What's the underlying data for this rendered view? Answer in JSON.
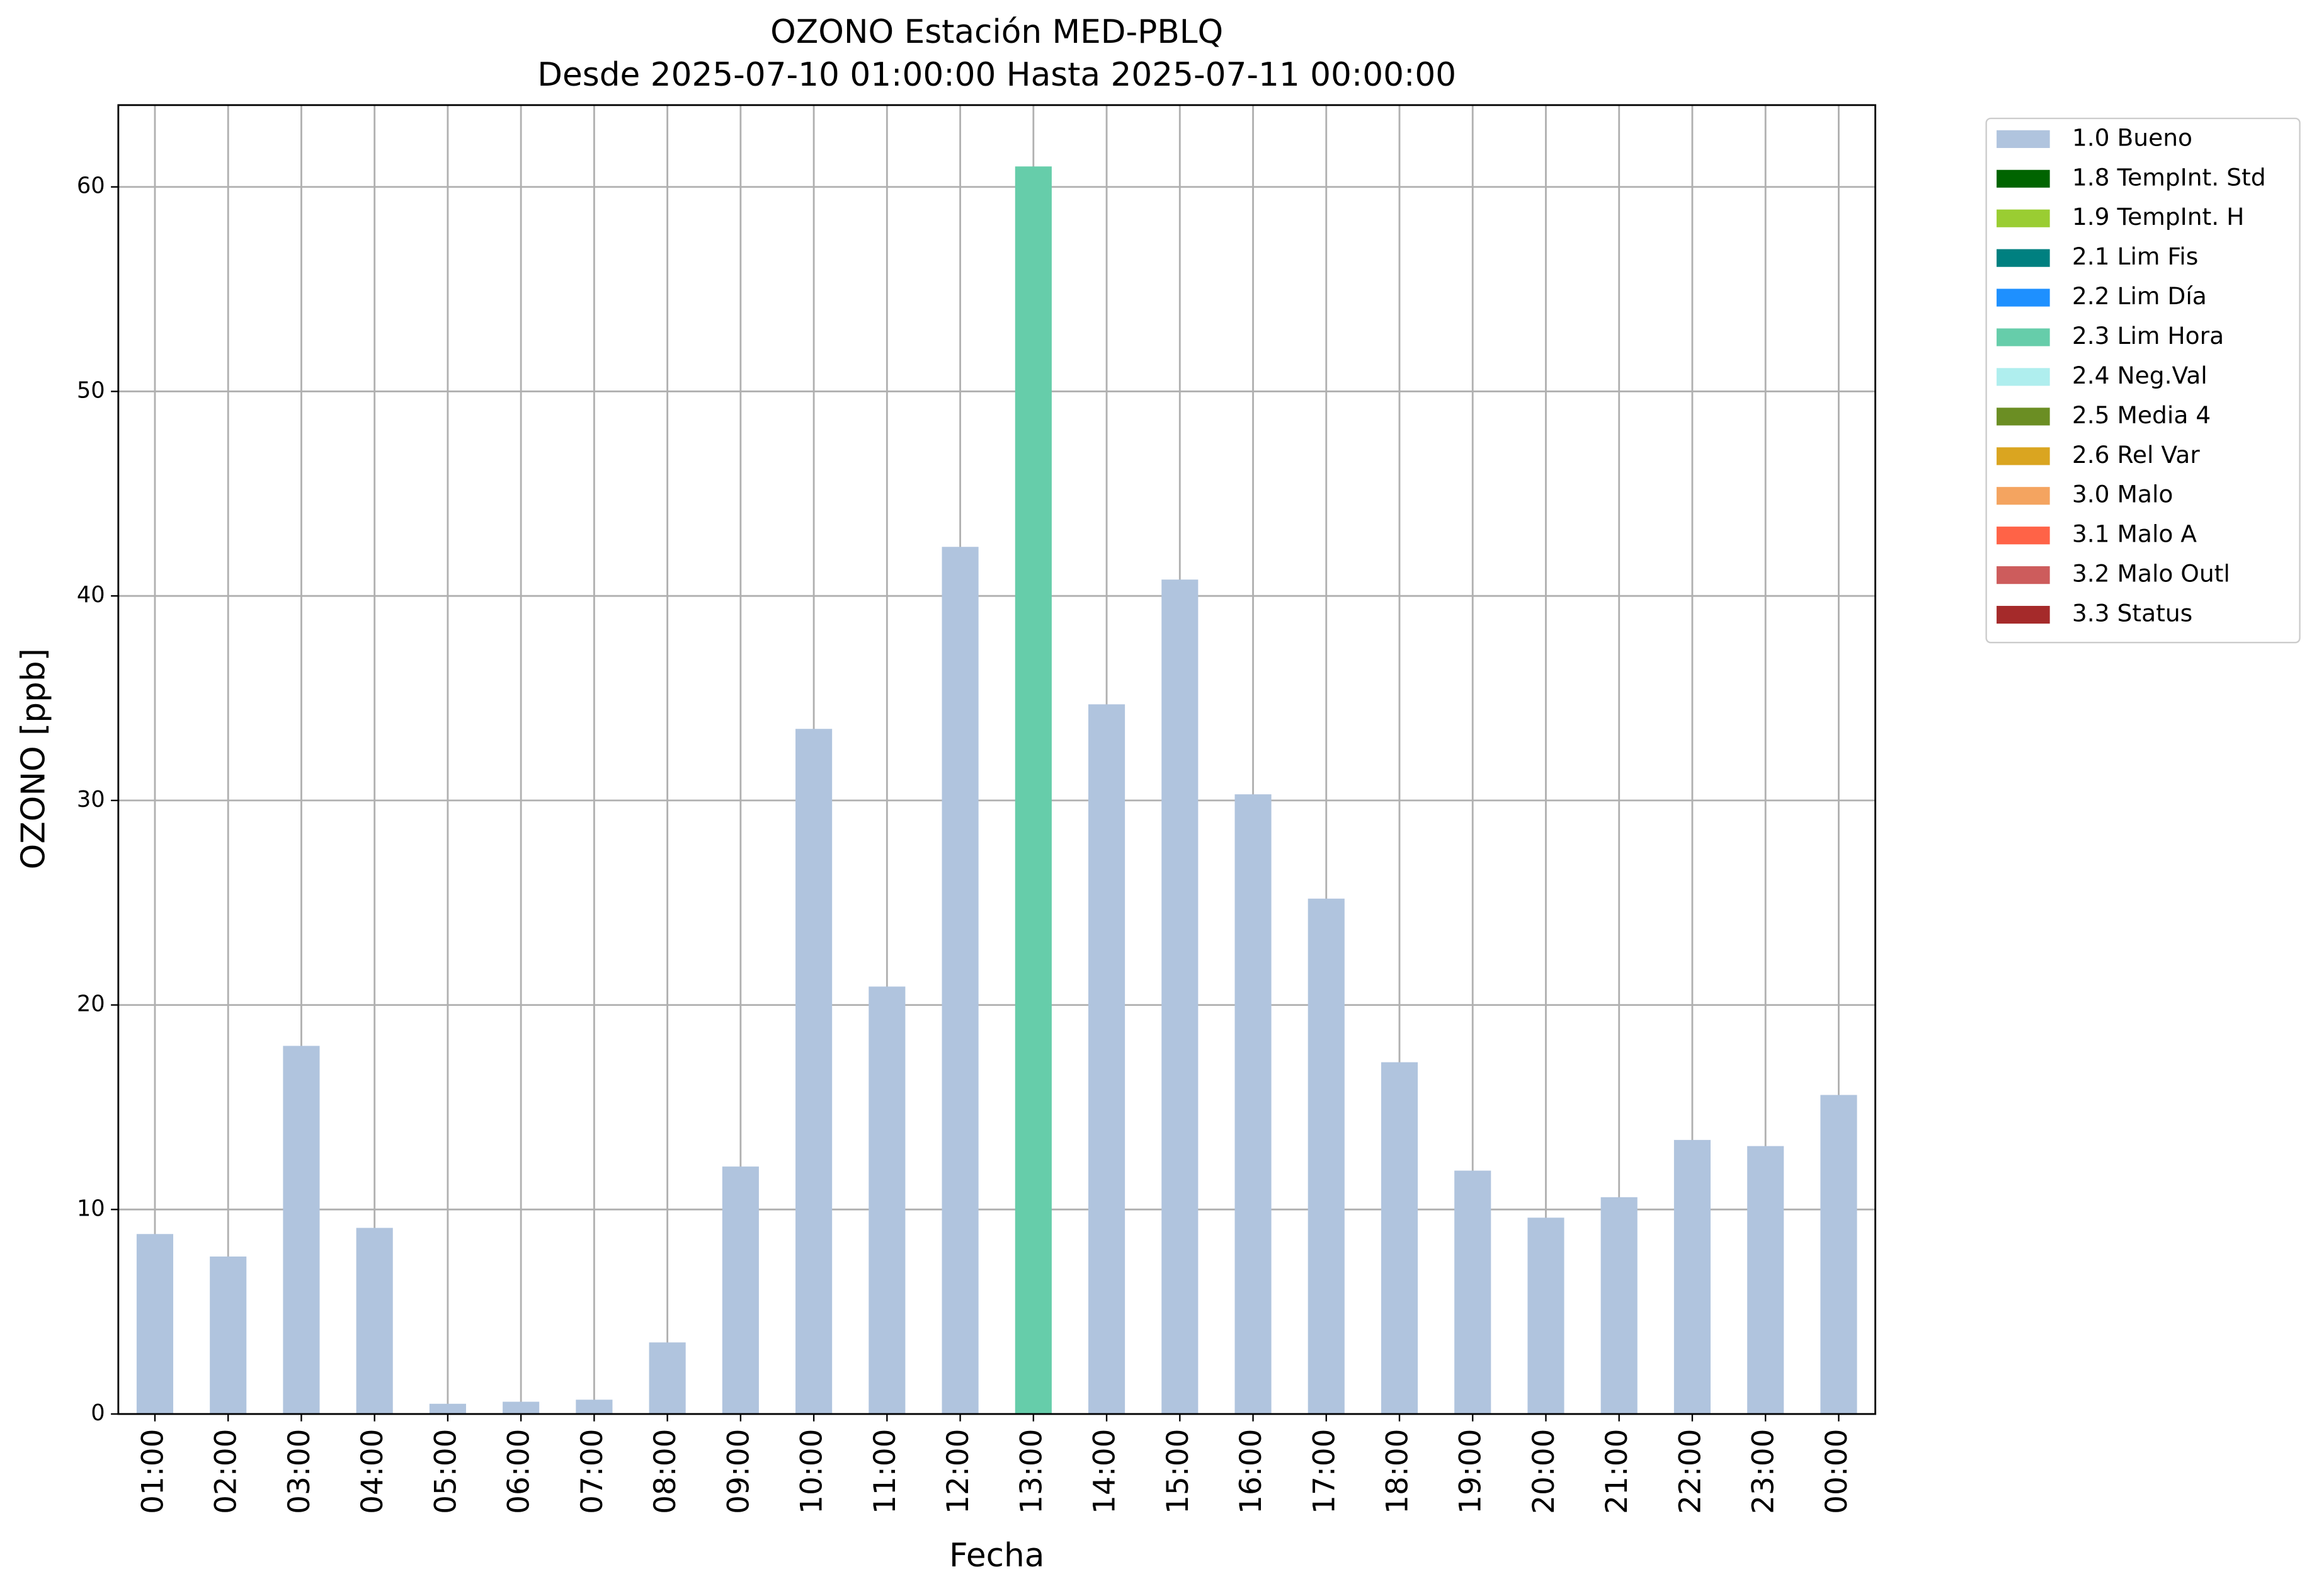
{
  "chart_data": {
    "type": "bar",
    "stacked": true,
    "title": "OZONO Estación MED-PBLQ",
    "subtitle": "Desde 2025-07-10 01:00:00 Hasta 2025-07-11 00:00:00",
    "xlabel": "Fecha",
    "ylabel": "OZONO [ppb]",
    "categories": [
      "01:00",
      "02:00",
      "03:00",
      "04:00",
      "05:00",
      "06:00",
      "07:00",
      "08:00",
      "09:00",
      "10:00",
      "11:00",
      "12:00",
      "13:00",
      "14:00",
      "15:00",
      "16:00",
      "17:00",
      "18:00",
      "19:00",
      "20:00",
      "21:00",
      "22:00",
      "23:00",
      "00:00"
    ],
    "series": [
      {
        "name": "1.0 Bueno",
        "color": "#b0c4de",
        "values": [
          8.8,
          7.7,
          18.0,
          9.1,
          0.5,
          0.6,
          0.7,
          3.5,
          12.1,
          33.5,
          20.9,
          42.4,
          null,
          34.7,
          40.8,
          30.3,
          25.2,
          17.2,
          11.9,
          9.6,
          10.6,
          13.4,
          13.1,
          15.6
        ]
      },
      {
        "name": "1.8 TempInt. Std",
        "color": "#006400",
        "values": [
          null,
          null,
          null,
          null,
          null,
          null,
          null,
          null,
          null,
          null,
          null,
          null,
          null,
          null,
          null,
          null,
          null,
          null,
          null,
          null,
          null,
          null,
          null,
          null
        ]
      },
      {
        "name": "1.9 TempInt. H",
        "color": "#9acd32",
        "values": [
          null,
          null,
          null,
          null,
          null,
          null,
          null,
          null,
          null,
          null,
          null,
          null,
          null,
          null,
          null,
          null,
          null,
          null,
          null,
          null,
          null,
          null,
          null,
          null
        ]
      },
      {
        "name": "2.1 Lim Fis",
        "color": "#008080",
        "values": [
          null,
          null,
          null,
          null,
          null,
          null,
          null,
          null,
          null,
          null,
          null,
          null,
          null,
          null,
          null,
          null,
          null,
          null,
          null,
          null,
          null,
          null,
          null,
          null
        ]
      },
      {
        "name": "2.2 Lim Día",
        "color": "#1e90ff",
        "values": [
          null,
          null,
          null,
          null,
          null,
          null,
          null,
          null,
          null,
          null,
          null,
          null,
          null,
          null,
          null,
          null,
          null,
          null,
          null,
          null,
          null,
          null,
          null,
          null
        ]
      },
      {
        "name": "2.3 Lim Hora",
        "color": "#66cdaa",
        "values": [
          null,
          null,
          null,
          null,
          null,
          null,
          null,
          null,
          null,
          null,
          null,
          null,
          61.0,
          null,
          null,
          null,
          null,
          null,
          null,
          null,
          null,
          null,
          null,
          null
        ]
      },
      {
        "name": "2.4 Neg.Val",
        "color": "#afeeee",
        "values": [
          null,
          null,
          null,
          null,
          null,
          null,
          null,
          null,
          null,
          null,
          null,
          null,
          null,
          null,
          null,
          null,
          null,
          null,
          null,
          null,
          null,
          null,
          null,
          null
        ]
      },
      {
        "name": "2.5 Media 4",
        "color": "#6b8e23",
        "values": [
          null,
          null,
          null,
          null,
          null,
          null,
          null,
          null,
          null,
          null,
          null,
          null,
          null,
          null,
          null,
          null,
          null,
          null,
          null,
          null,
          null,
          null,
          null,
          null
        ]
      },
      {
        "name": "2.6 Rel Var",
        "color": "#daa520",
        "values": [
          null,
          null,
          null,
          null,
          null,
          null,
          null,
          null,
          null,
          null,
          null,
          null,
          null,
          null,
          null,
          null,
          null,
          null,
          null,
          null,
          null,
          null,
          null,
          null
        ]
      },
      {
        "name": "3.0 Malo",
        "color": "#f4a460",
        "values": [
          null,
          null,
          null,
          null,
          null,
          null,
          null,
          null,
          null,
          null,
          null,
          null,
          null,
          null,
          null,
          null,
          null,
          null,
          null,
          null,
          null,
          null,
          null,
          null
        ]
      },
      {
        "name": "3.1 Malo A",
        "color": "#ff6347",
        "values": [
          null,
          null,
          null,
          null,
          null,
          null,
          null,
          null,
          null,
          null,
          null,
          null,
          null,
          null,
          null,
          null,
          null,
          null,
          null,
          null,
          null,
          null,
          null,
          null
        ]
      },
      {
        "name": "3.2 Malo Outl",
        "color": "#cd5c5c",
        "values": [
          null,
          null,
          null,
          null,
          null,
          null,
          null,
          null,
          null,
          null,
          null,
          null,
          null,
          null,
          null,
          null,
          null,
          null,
          null,
          null,
          null,
          null,
          null,
          null
        ]
      },
      {
        "name": "3.3 Status",
        "color": "#a52a2a",
        "values": [
          null,
          null,
          null,
          null,
          null,
          null,
          null,
          null,
          null,
          null,
          null,
          null,
          null,
          null,
          null,
          null,
          null,
          null,
          null,
          null,
          null,
          null,
          null,
          null
        ]
      }
    ],
    "ylim": [
      0,
      64
    ],
    "yticks": [
      0,
      10,
      20,
      30,
      40,
      50,
      60
    ],
    "grid": true,
    "legend": "outside upper right"
  }
}
